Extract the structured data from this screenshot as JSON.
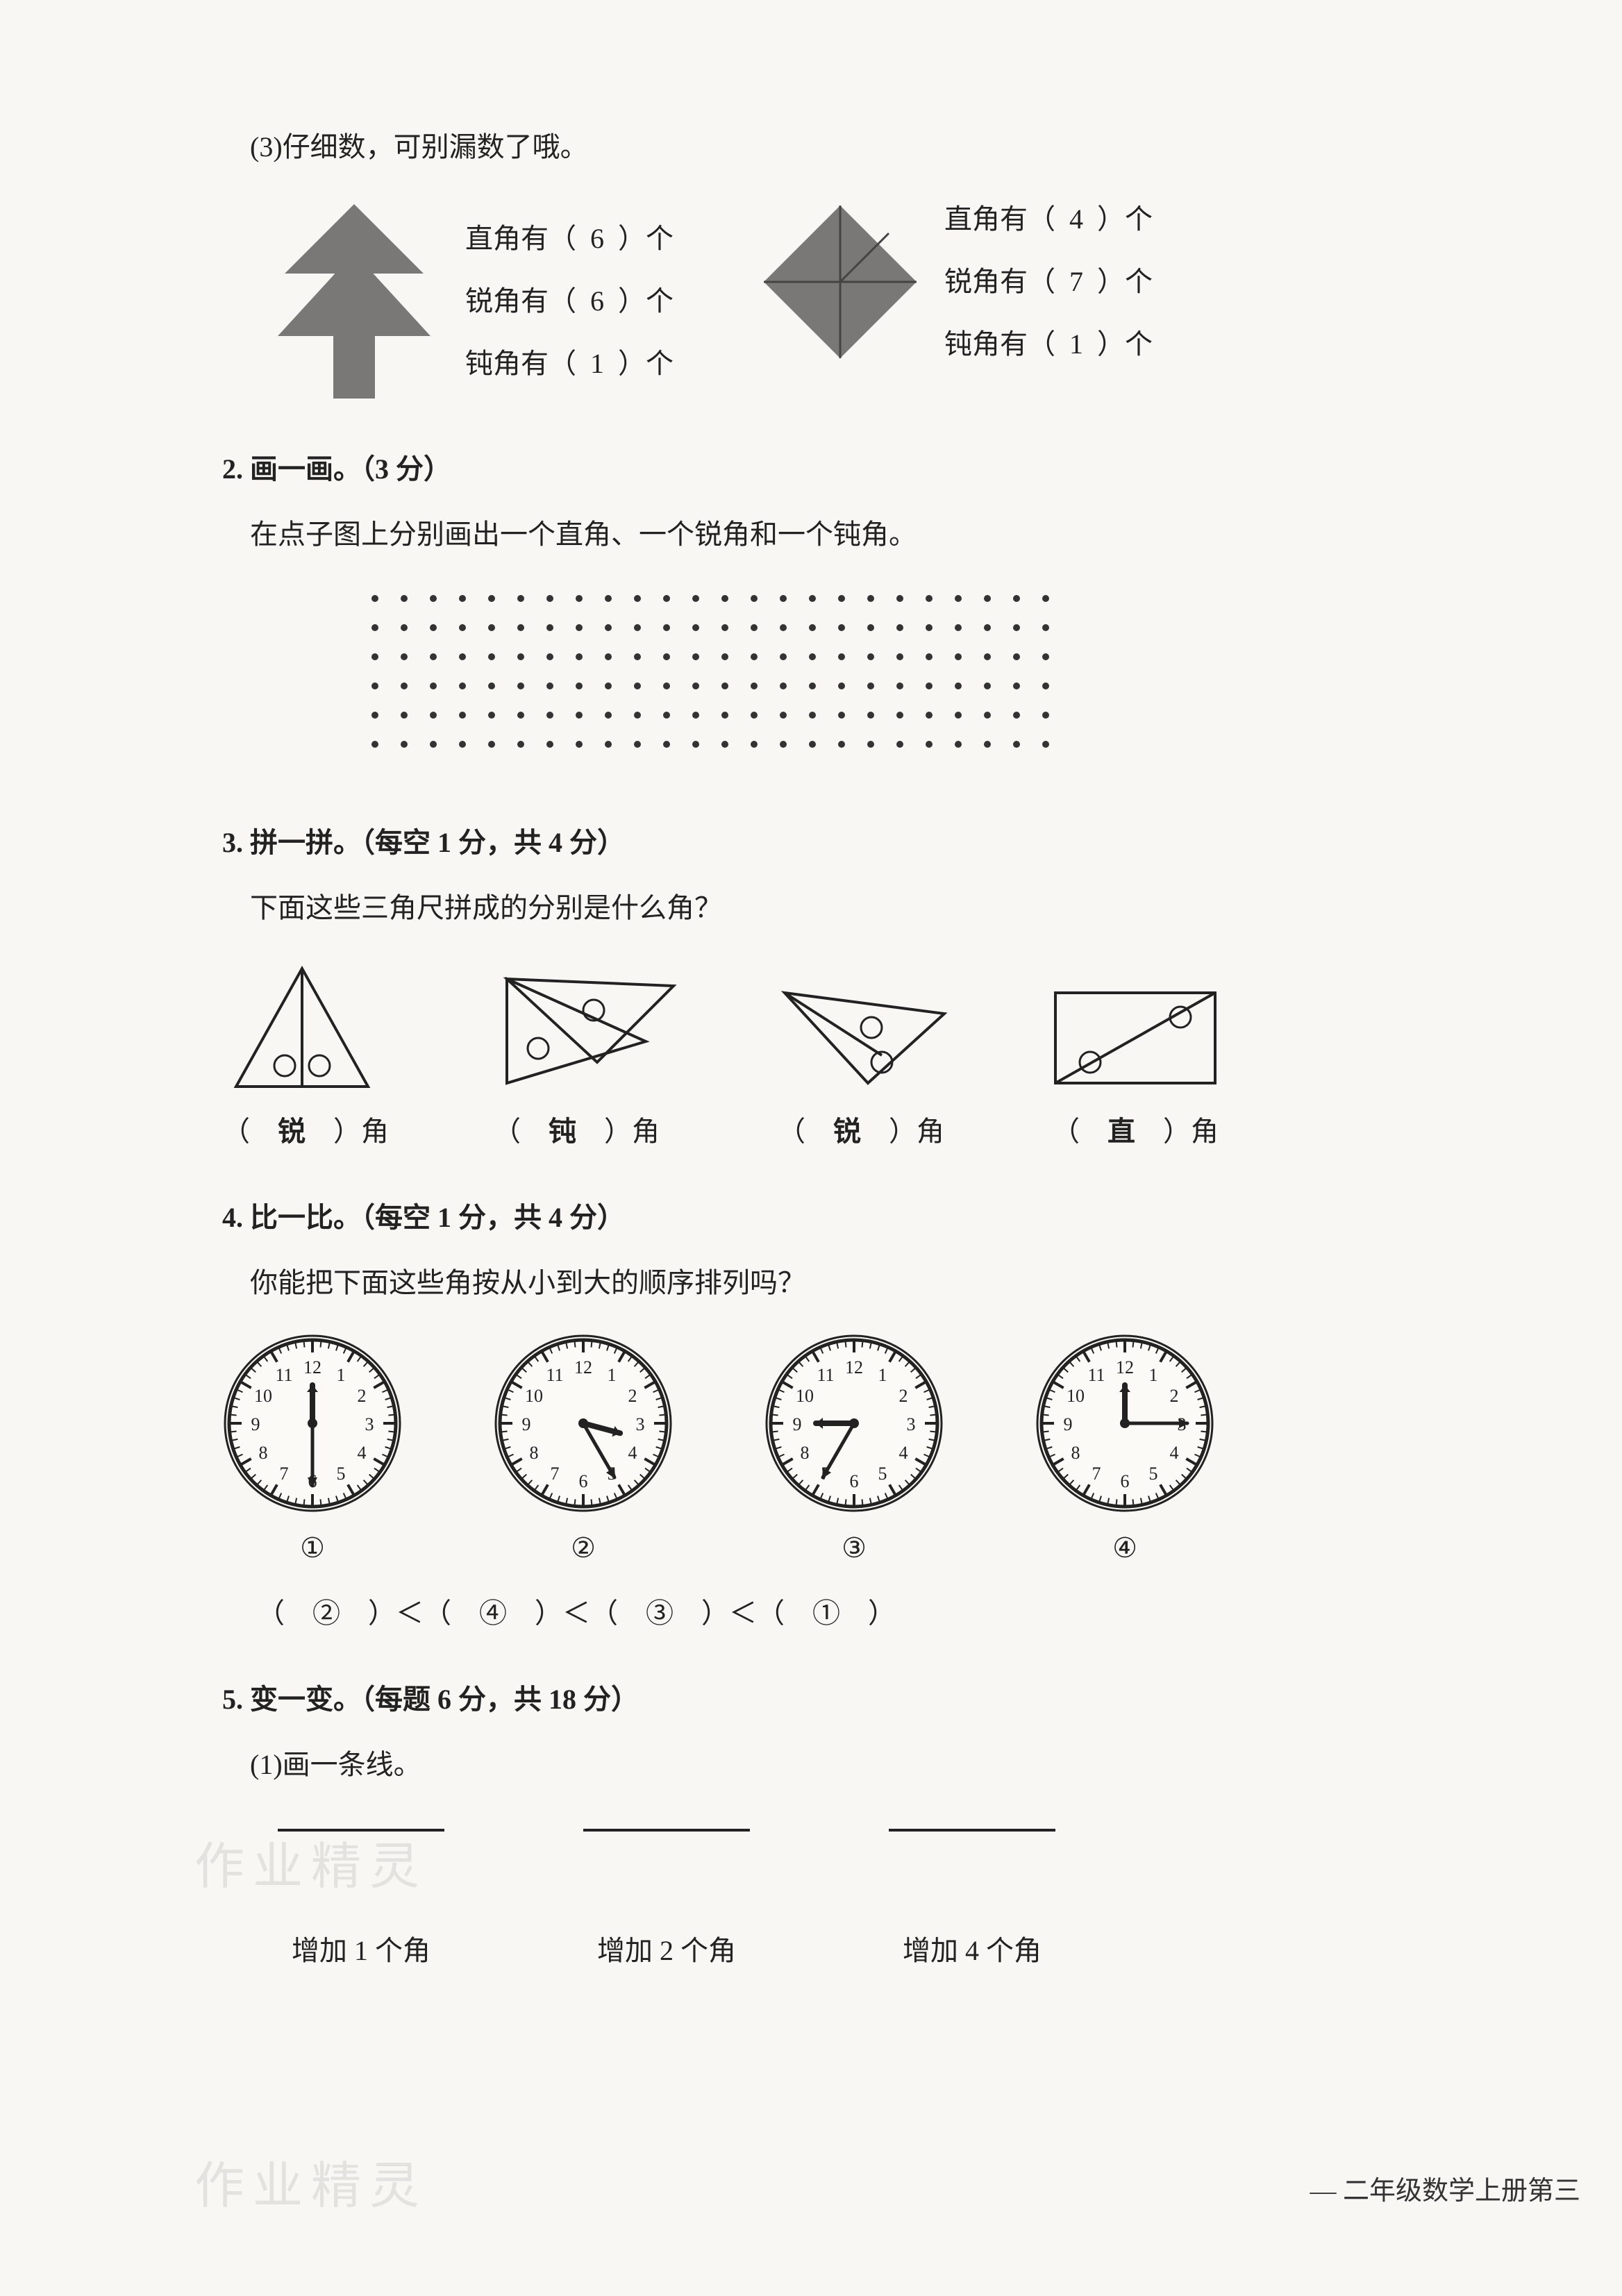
{
  "q1c": {
    "prompt": "(3)仔细数，可别漏数了哦。",
    "shape1": {
      "fill": "#7a7876",
      "lines": [
        {
          "label": "直角有（",
          "value": "6",
          "suffix": "）个"
        },
        {
          "label": "锐角有（",
          "value": "6",
          "suffix": "）个"
        },
        {
          "label": "钝角有（",
          "value": "1",
          "suffix": "）个"
        }
      ]
    },
    "shape2": {
      "fill": "#7a7876",
      "lines": [
        {
          "label": "直角有（",
          "value": "4",
          "suffix": "）个"
        },
        {
          "label": "锐角有（",
          "value": "7",
          "suffix": "）个"
        },
        {
          "label": "钝角有（",
          "value": "1",
          "suffix": "）个"
        }
      ]
    }
  },
  "q2": {
    "header": "2. 画一画。（3 分）",
    "prompt": "在点子图上分别画出一个直角、一个锐角和一个钝角。",
    "grid": {
      "rows": 6,
      "cols": 24,
      "dot_color": "#333",
      "dot_r": 5,
      "spacing": 42
    }
  },
  "q3": {
    "header": "3. 拼一拼。（每空 1 分，共 4 分）",
    "prompt": "下面这些三角尺拼成的分别是什么角？",
    "answers": [
      "锐",
      "钝",
      "锐",
      "直"
    ]
  },
  "q4": {
    "header": "4. 比一比。（每空 1 分，共 4 分）",
    "prompt": "你能把下面这些角按从小到大的顺序排列吗？",
    "clocks": [
      {
        "label": "①",
        "hour_angle": 360,
        "min_angle": 180
      },
      {
        "label": "②",
        "hour_angle": 105,
        "min_angle": 150
      },
      {
        "label": "③",
        "hour_angle": 270,
        "min_angle": 210
      },
      {
        "label": "④",
        "hour_angle": 360,
        "min_angle": 90
      }
    ],
    "order": [
      "②",
      "④",
      "③",
      "①"
    ],
    "sep": "＜"
  },
  "q5": {
    "header": "5. 变一变。（每题 6 分，共 18 分）",
    "sub": "(1)画一条线。",
    "items": [
      "增加 1 个角",
      "增加 2 个角",
      "增加 4 个角"
    ]
  },
  "footer": "— 二年级数学上册第三",
  "watermark": "作业精灵"
}
